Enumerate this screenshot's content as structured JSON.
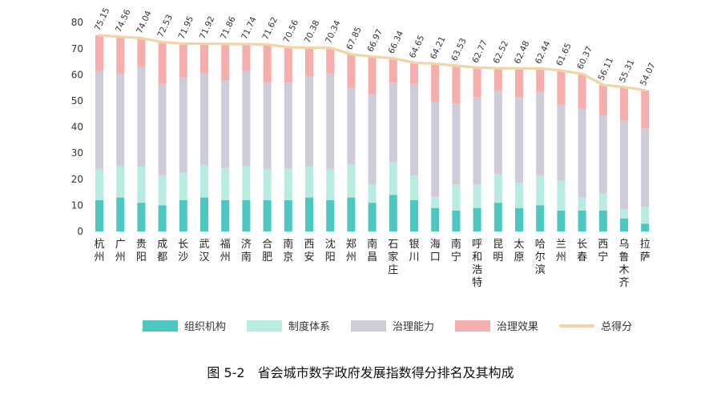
{
  "caption": "图 5-2　省会城市数字政府发展指数得分排名及其构成",
  "chart_data": {
    "type": "bar",
    "stacked": true,
    "categories": [
      "杭州",
      "广州",
      "贵阳",
      "成都",
      "长沙",
      "武汉",
      "福州",
      "济南",
      "合肥",
      "南京",
      "西安",
      "沈阳",
      "郑州",
      "南昌",
      "石家庄",
      "银川",
      "海口",
      "南宁",
      "呼和浩特",
      "昆明",
      "太原",
      "哈尔滨",
      "兰州",
      "长春",
      "西宁",
      "乌鲁木齐",
      "拉萨"
    ],
    "series": [
      {
        "name": "组织机构",
        "color": "#4cc7c2",
        "values": [
          12,
          13,
          11,
          10,
          12,
          13,
          12,
          12,
          12,
          12,
          13,
          12,
          13,
          11,
          14,
          12,
          9,
          8,
          9,
          11,
          9,
          10,
          8,
          8,
          8,
          5,
          3
        ]
      },
      {
        "name": "制度体系",
        "color": "#b9ece0",
        "values": [
          12,
          12,
          14,
          11.5,
          10.5,
          12.5,
          12.5,
          13,
          12,
          12,
          12,
          12,
          12.5,
          7,
          12.5,
          9.5,
          4.5,
          10,
          9,
          11,
          9.5,
          11.5,
          11.5,
          5,
          6.5,
          3.5,
          6.5
        ]
      },
      {
        "name": "治理能力",
        "color": "#cfccd9",
        "values": [
          37.5,
          35.5,
          38,
          35,
          36.5,
          35,
          33.5,
          36.5,
          33,
          33,
          34.5,
          36.5,
          29.5,
          34.5,
          30.5,
          35,
          36,
          31,
          33.5,
          32,
          33,
          32,
          29,
          34,
          30,
          34,
          30
        ]
      },
      {
        "name": "治理效果",
        "color": "#f5aeab",
        "values": [
          13.65,
          14.06,
          11.04,
          16.03,
          12.95,
          11.42,
          13.86,
          10.24,
          14.62,
          13.56,
          10.88,
          9.84,
          12.85,
          14.47,
          9.34,
          8.15,
          14.71,
          14.53,
          11.27,
          8.52,
          10.98,
          8.94,
          13.15,
          13.37,
          11.61,
          12.81,
          14.57
        ]
      }
    ],
    "total": {
      "name": "总得分",
      "color": "#f2d4a6",
      "values": [
        75.15,
        74.56,
        74.04,
        72.53,
        71.95,
        71.92,
        71.86,
        71.74,
        71.62,
        70.56,
        70.38,
        70.34,
        67.85,
        66.97,
        66.34,
        64.65,
        64.21,
        63.53,
        62.77,
        62.52,
        62.48,
        62.44,
        61.65,
        60.37,
        56.11,
        55.31,
        54.07
      ]
    },
    "total_labels": [
      "75.15",
      "74.56",
      "74.04",
      "72.53",
      "71.95",
      "71.92",
      "71.86",
      "71.74",
      "71.62",
      "70.56",
      "70.38",
      "70.34",
      "67.85",
      "66.97",
      "66.34",
      "64.65",
      "64.21",
      "63.53",
      "62.77",
      "62.52",
      "62.48",
      "62.44",
      "61.65",
      "60.37",
      "56.11",
      "55.31",
      "54.07"
    ],
    "ylim": [
      0,
      80
    ],
    "yticks": [
      "0",
      "10",
      "20",
      "30",
      "40",
      "50",
      "60",
      "70",
      "80"
    ],
    "legend_position": "bottom"
  },
  "legend": [
    {
      "label": "组织机构",
      "color": "#4cc7c2",
      "kind": "box"
    },
    {
      "label": "制度体系",
      "color": "#b9ece0",
      "kind": "box"
    },
    {
      "label": "治理能力",
      "color": "#cfccd9",
      "kind": "box"
    },
    {
      "label": "治理效果",
      "color": "#f5aeab",
      "kind": "box"
    },
    {
      "label": "总得分",
      "color": "#f2d4a6",
      "kind": "line"
    }
  ]
}
